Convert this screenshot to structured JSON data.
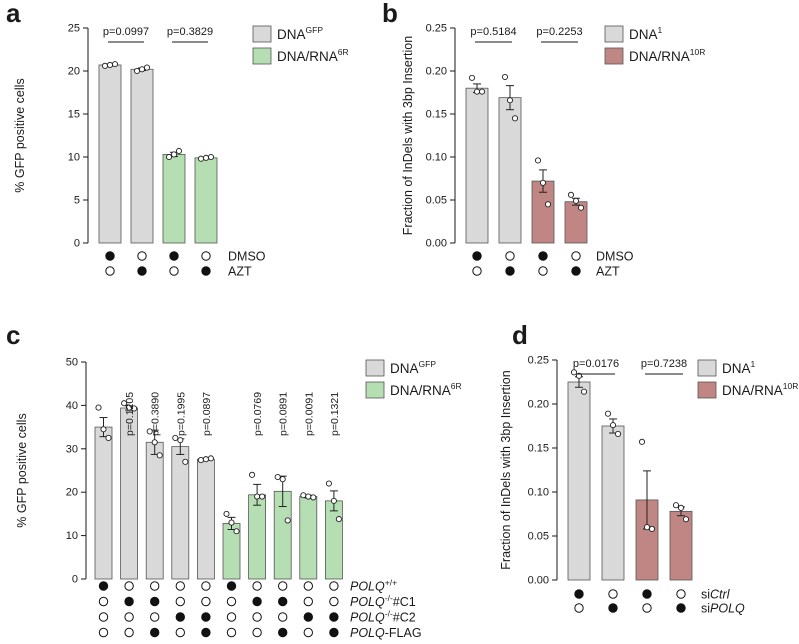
{
  "colors": {
    "gray": "#d9d9d9",
    "green": "#b5dfb2",
    "rose": "#c08683",
    "axis": "#1a1a1a"
  },
  "chart_data": [
    {
      "panel": "a",
      "type": "bar",
      "ylabel": "% GFP positive cells",
      "ylim": [
        0,
        25
      ],
      "yticks": [
        0,
        5,
        10,
        15,
        20,
        25
      ],
      "legend": [
        {
          "name": "DNA",
          "sup": "GFP",
          "color": "gray"
        },
        {
          "name": "DNA/RNA",
          "sup": "6R",
          "color": "green"
        }
      ],
      "bars": [
        {
          "value": 20.7,
          "err": 0.1,
          "color": "gray",
          "points": [
            20.6,
            20.7,
            20.8
          ]
        },
        {
          "value": 20.2,
          "err": 0.15,
          "color": "gray",
          "points": [
            20.0,
            20.2,
            20.4
          ]
        },
        {
          "value": 10.3,
          "err": 0.25,
          "color": "green",
          "points": [
            10.0,
            10.3,
            10.7
          ]
        },
        {
          "value": 9.9,
          "err": 0.1,
          "color": "green",
          "points": [
            9.8,
            9.9,
            10.0
          ]
        }
      ],
      "pvalues": [
        {
          "text": "p=0.0997",
          "from": 0,
          "to": 1
        },
        {
          "text": "p=0.3829",
          "from": 2,
          "to": 3
        }
      ],
      "conditions": [
        {
          "label": "DMSO",
          "filled": [
            true,
            false,
            true,
            false
          ]
        },
        {
          "label": "AZT",
          "filled": [
            false,
            true,
            false,
            true
          ]
        }
      ]
    },
    {
      "panel": "b",
      "type": "bar",
      "ylabel": "Fraction of InDels with 3bp Insertion",
      "ylim": [
        0,
        0.25
      ],
      "yticks": [
        "0.00",
        "0.05",
        "0.10",
        "0.15",
        "0.20",
        "0.25"
      ],
      "legend": [
        {
          "name": "DNA",
          "sup": "1",
          "color": "gray"
        },
        {
          "name": "DNA/RNA",
          "sup": "10R",
          "color": "rose"
        }
      ],
      "bars": [
        {
          "value": 0.18,
          "err": 0.005,
          "color": "gray",
          "points": [
            0.192,
            0.176,
            0.176
          ]
        },
        {
          "value": 0.169,
          "err": 0.014,
          "color": "gray",
          "points": [
            0.193,
            0.166,
            0.145
          ]
        },
        {
          "value": 0.072,
          "err": 0.013,
          "color": "rose",
          "points": [
            0.096,
            0.07,
            0.045
          ]
        },
        {
          "value": 0.048,
          "err": 0.004,
          "color": "rose",
          "points": [
            0.056,
            0.049,
            0.041
          ]
        }
      ],
      "pvalues": [
        {
          "text": "p=0.5184",
          "from": 0,
          "to": 1
        },
        {
          "text": "p=0.2253",
          "from": 2,
          "to": 3
        }
      ],
      "conditions": [
        {
          "label": "DMSO",
          "filled": [
            true,
            false,
            true,
            false
          ]
        },
        {
          "label": "AZT",
          "filled": [
            false,
            true,
            false,
            true
          ]
        }
      ]
    },
    {
      "panel": "c",
      "type": "bar",
      "ylabel": "% GFP positive cells",
      "ylim": [
        0,
        50
      ],
      "yticks": [
        0,
        10,
        20,
        30,
        40,
        50
      ],
      "legend": [
        {
          "name": "DNA",
          "sup": "GFP",
          "color": "gray"
        },
        {
          "name": "DNA/RNA",
          "sup": "6R",
          "color": "green"
        }
      ],
      "bars": [
        {
          "value": 35,
          "err": 2.2,
          "color": "gray",
          "points": [
            39.5,
            34.5,
            32.5
          ]
        },
        {
          "value": 39.4,
          "err": 0.5,
          "color": "gray",
          "points": [
            40.5,
            39.5,
            39.3
          ]
        },
        {
          "value": 31.5,
          "err": 2.8,
          "color": "gray",
          "points": [
            34.0,
            31.5,
            28.5
          ]
        },
        {
          "value": 30.5,
          "err": 1.8,
          "color": "gray",
          "points": [
            32.5,
            32.0,
            27.0
          ]
        },
        {
          "value": 27.6,
          "err": 0.2,
          "color": "gray",
          "points": [
            27.4,
            27.6,
            27.8
          ]
        },
        {
          "value": 12.8,
          "err": 1.4,
          "color": "green",
          "points": [
            15.0,
            13.0,
            11.0
          ]
        },
        {
          "value": 19.4,
          "err": 2.4,
          "color": "green",
          "points": [
            24.0,
            19.0,
            19.0
          ]
        },
        {
          "value": 20.2,
          "err": 3.5,
          "color": "green",
          "points": [
            23.5,
            23.0,
            13.5
          ]
        },
        {
          "value": 19.0,
          "err": 0.3,
          "color": "green",
          "points": [
            19.3,
            19.0,
            18.8
          ]
        },
        {
          "value": 18.0,
          "err": 2.3,
          "color": "green",
          "points": [
            22.0,
            18.0,
            13.8
          ]
        }
      ],
      "pvalues_vertical": [
        {
          "text": "p=0.1205",
          "bar": 1
        },
        {
          "text": "p=0.3890",
          "bar": 2
        },
        {
          "text": "p=0.1995",
          "bar": 3
        },
        {
          "text": "p=0.0897",
          "bar": 4
        },
        {
          "text": "p=0.0769",
          "bar": 6
        },
        {
          "text": "p=0.0891",
          "bar": 7
        },
        {
          "text": "p=0.0091",
          "bar": 8
        },
        {
          "text": "p=0.1321",
          "bar": 9
        }
      ],
      "conditions": [
        {
          "label_parts": [
            {
              "t": "POLQ",
              "i": true
            },
            {
              "t": "+/+",
              "sup": true
            }
          ],
          "filled": [
            true,
            false,
            false,
            false,
            false,
            true,
            false,
            false,
            false,
            false
          ]
        },
        {
          "label_parts": [
            {
              "t": "POLQ",
              "i": true
            },
            {
              "t": "-/-",
              "sup": true
            },
            {
              "t": "#C1"
            }
          ],
          "filled": [
            false,
            true,
            true,
            false,
            false,
            false,
            true,
            true,
            false,
            false
          ]
        },
        {
          "label_parts": [
            {
              "t": "POLQ",
              "i": true
            },
            {
              "t": "-/-",
              "sup": true
            },
            {
              "t": "#C2"
            }
          ],
          "filled": [
            false,
            false,
            false,
            true,
            true,
            false,
            false,
            false,
            true,
            true
          ]
        },
        {
          "label_parts": [
            {
              "t": "POLQ",
              "i": true
            },
            {
              "t": "-FLAG"
            }
          ],
          "filled": [
            false,
            false,
            true,
            false,
            true,
            false,
            false,
            true,
            false,
            true
          ]
        }
      ]
    },
    {
      "panel": "d",
      "type": "bar",
      "ylabel": "Fraction of InDels with 3bp Insertion",
      "ylim": [
        0,
        0.25
      ],
      "yticks": [
        "0.00",
        "0.05",
        "0.10",
        "0.15",
        "0.20",
        "0.25"
      ],
      "legend": [
        {
          "name": "DNA",
          "sup": "1",
          "color": "gray"
        },
        {
          "name": "DNA/RNA",
          "sup": "10R",
          "color": "rose"
        }
      ],
      "bars": [
        {
          "value": 0.225,
          "err": 0.006,
          "color": "gray",
          "points": [
            0.236,
            0.232,
            0.214
          ]
        },
        {
          "value": 0.175,
          "err": 0.008,
          "color": "gray",
          "points": [
            0.189,
            0.176,
            0.166
          ]
        },
        {
          "value": 0.091,
          "err": 0.033,
          "color": "rose",
          "points": [
            0.157,
            0.06,
            0.058
          ]
        },
        {
          "value": 0.078,
          "err": 0.005,
          "color": "rose",
          "points": [
            0.085,
            0.082,
            0.069
          ]
        }
      ],
      "pvalues": [
        {
          "text": "p=0.0176",
          "from": 0,
          "to": 1
        },
        {
          "text": "p=0.7238",
          "from": 2,
          "to": 3
        }
      ],
      "conditions": [
        {
          "label_parts": [
            {
              "t": "si"
            },
            {
              "t": "Ctrl",
              "i": true
            }
          ],
          "filled": [
            true,
            false,
            true,
            false
          ]
        },
        {
          "label_parts": [
            {
              "t": "si"
            },
            {
              "t": "POLQ",
              "i": true
            }
          ],
          "filled": [
            false,
            true,
            false,
            true
          ]
        }
      ]
    }
  ],
  "panel_letters": [
    "a",
    "b",
    "c",
    "d"
  ]
}
